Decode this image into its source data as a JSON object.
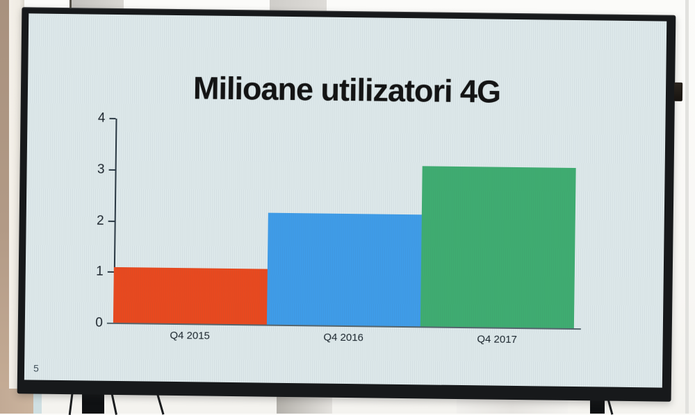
{
  "slide": {
    "number": "5"
  },
  "chart_data": {
    "type": "bar",
    "title": "Milioane utilizatori 4G",
    "categories": [
      "Q4 2015",
      "Q4 2016",
      "Q4 2017"
    ],
    "values": [
      1.1,
      2.2,
      3.15
    ],
    "bar_colors": [
      "#e8491f",
      "#3f9ce8",
      "#3fac71"
    ],
    "ylim": [
      0,
      4
    ],
    "yticks": [
      0,
      1,
      2,
      3,
      4
    ],
    "xlabel": "",
    "ylabel": "",
    "grid": false,
    "legend": false
  }
}
